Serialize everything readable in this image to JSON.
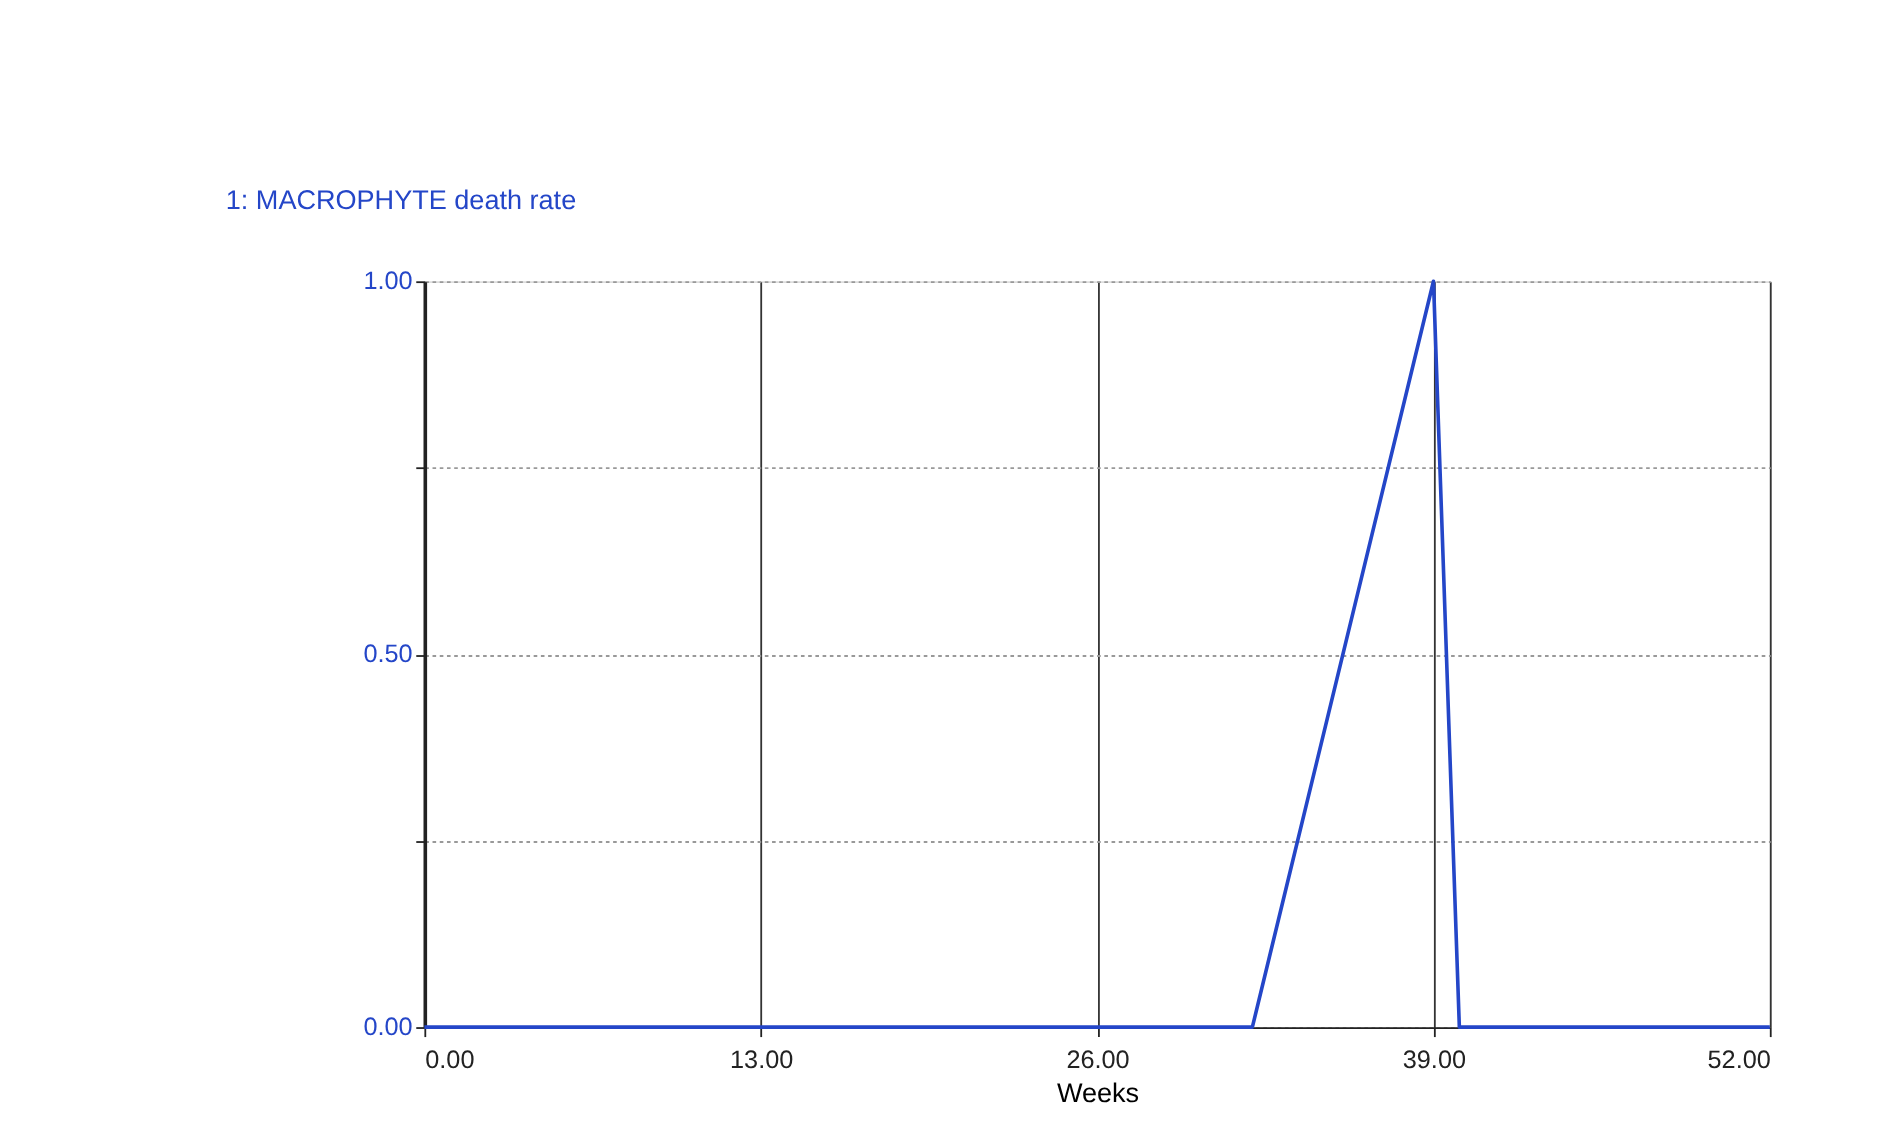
{
  "chart_data": {
    "type": "line",
    "xlabel": "Weeks",
    "x": [
      0,
      32,
      39,
      40,
      52
    ],
    "series": [
      {
        "name": "1: MACROPHYTE death rate",
        "color": "#2446c8",
        "values": [
          0,
          0,
          1,
          0,
          0
        ]
      }
    ],
    "xlim": [
      0,
      52
    ],
    "xticks": [
      {
        "value": 0,
        "label": "0.00"
      },
      {
        "value": 13,
        "label": "13.00"
      },
      {
        "value": 26,
        "label": "26.00"
      },
      {
        "value": 39,
        "label": "39.00"
      },
      {
        "value": 52,
        "label": "52.00"
      }
    ],
    "ylim": [
      0,
      1
    ],
    "yticks": [
      {
        "value": 0,
        "label": "0.00"
      },
      {
        "value": 0.25,
        "label": null
      },
      {
        "value": 0.5,
        "label": "0.50"
      },
      {
        "value": 0.75,
        "label": null
      },
      {
        "value": 1,
        "label": "1.00"
      }
    ],
    "grid": true,
    "legend": "top left",
    "marker": "none",
    "line_style": "solid"
  }
}
